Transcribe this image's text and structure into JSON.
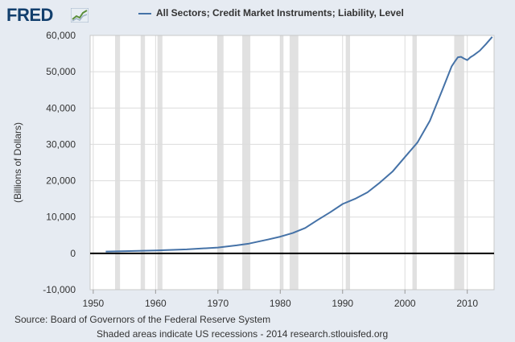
{
  "header": {
    "logo_text": "FRED",
    "logo_icon": "chart-trend-icon",
    "legend_label": "All Sectors; Credit Market Instruments; Liability, Level",
    "series_color": "#4572a7"
  },
  "footer": {
    "source": "Source: Board of Governors of the Federal Reserve System",
    "note": "Shaded areas indicate US recessions - 2014 research.stlouisfed.org"
  },
  "chart_data": {
    "type": "line",
    "title": "",
    "xlabel": "",
    "ylabel": "(Billions of Dollars)",
    "xlim": [
      1949.5,
      2014.3
    ],
    "ylim": [
      -10000,
      60000
    ],
    "x_ticks": [
      1950,
      1960,
      1970,
      1980,
      1990,
      2000,
      2010
    ],
    "x_tick_labels": [
      "1950",
      "1960",
      "1970",
      "1980",
      "1990",
      "2000",
      "2010"
    ],
    "y_ticks": [
      -10000,
      0,
      10000,
      20000,
      30000,
      40000,
      50000,
      60000
    ],
    "y_tick_labels": [
      "-10,000",
      "0",
      "10,000",
      "20,000",
      "30,000",
      "40,000",
      "50,000",
      "60,000"
    ],
    "grid": true,
    "recessions": [
      [
        1953.5,
        1954.3
      ],
      [
        1957.6,
        1958.3
      ],
      [
        1960.3,
        1961.1
      ],
      [
        1969.9,
        1970.9
      ],
      [
        1973.9,
        1975.2
      ],
      [
        1980.0,
        1980.5
      ],
      [
        1981.5,
        1982.9
      ],
      [
        1990.5,
        1991.2
      ],
      [
        2001.2,
        2001.9
      ],
      [
        2007.9,
        2009.5
      ]
    ],
    "series": [
      {
        "name": "All Sectors; Credit Market Instruments; Liability, Level",
        "color": "#4572a7",
        "x": [
          1952,
          1955,
          1960,
          1965,
          1970,
          1973,
          1975,
          1978,
          1980,
          1982,
          1984,
          1986,
          1988,
          1990,
          1992,
          1994,
          1996,
          1998,
          2000,
          2002,
          2004,
          2006,
          2007.5,
          2008,
          2008.5,
          2009,
          2009.5,
          2010,
          2010.5,
          2011,
          2012,
          2013,
          2014
        ],
        "values": [
          500,
          600,
          800,
          1100,
          1600,
          2200,
          2700,
          3800,
          4600,
          5600,
          7000,
          9200,
          11300,
          13600,
          15000,
          16800,
          19500,
          22500,
          26500,
          30500,
          36500,
          45000,
          51500,
          52800,
          54000,
          54100,
          53600,
          53200,
          54000,
          54500,
          55800,
          57600,
          59600
        ]
      }
    ]
  }
}
